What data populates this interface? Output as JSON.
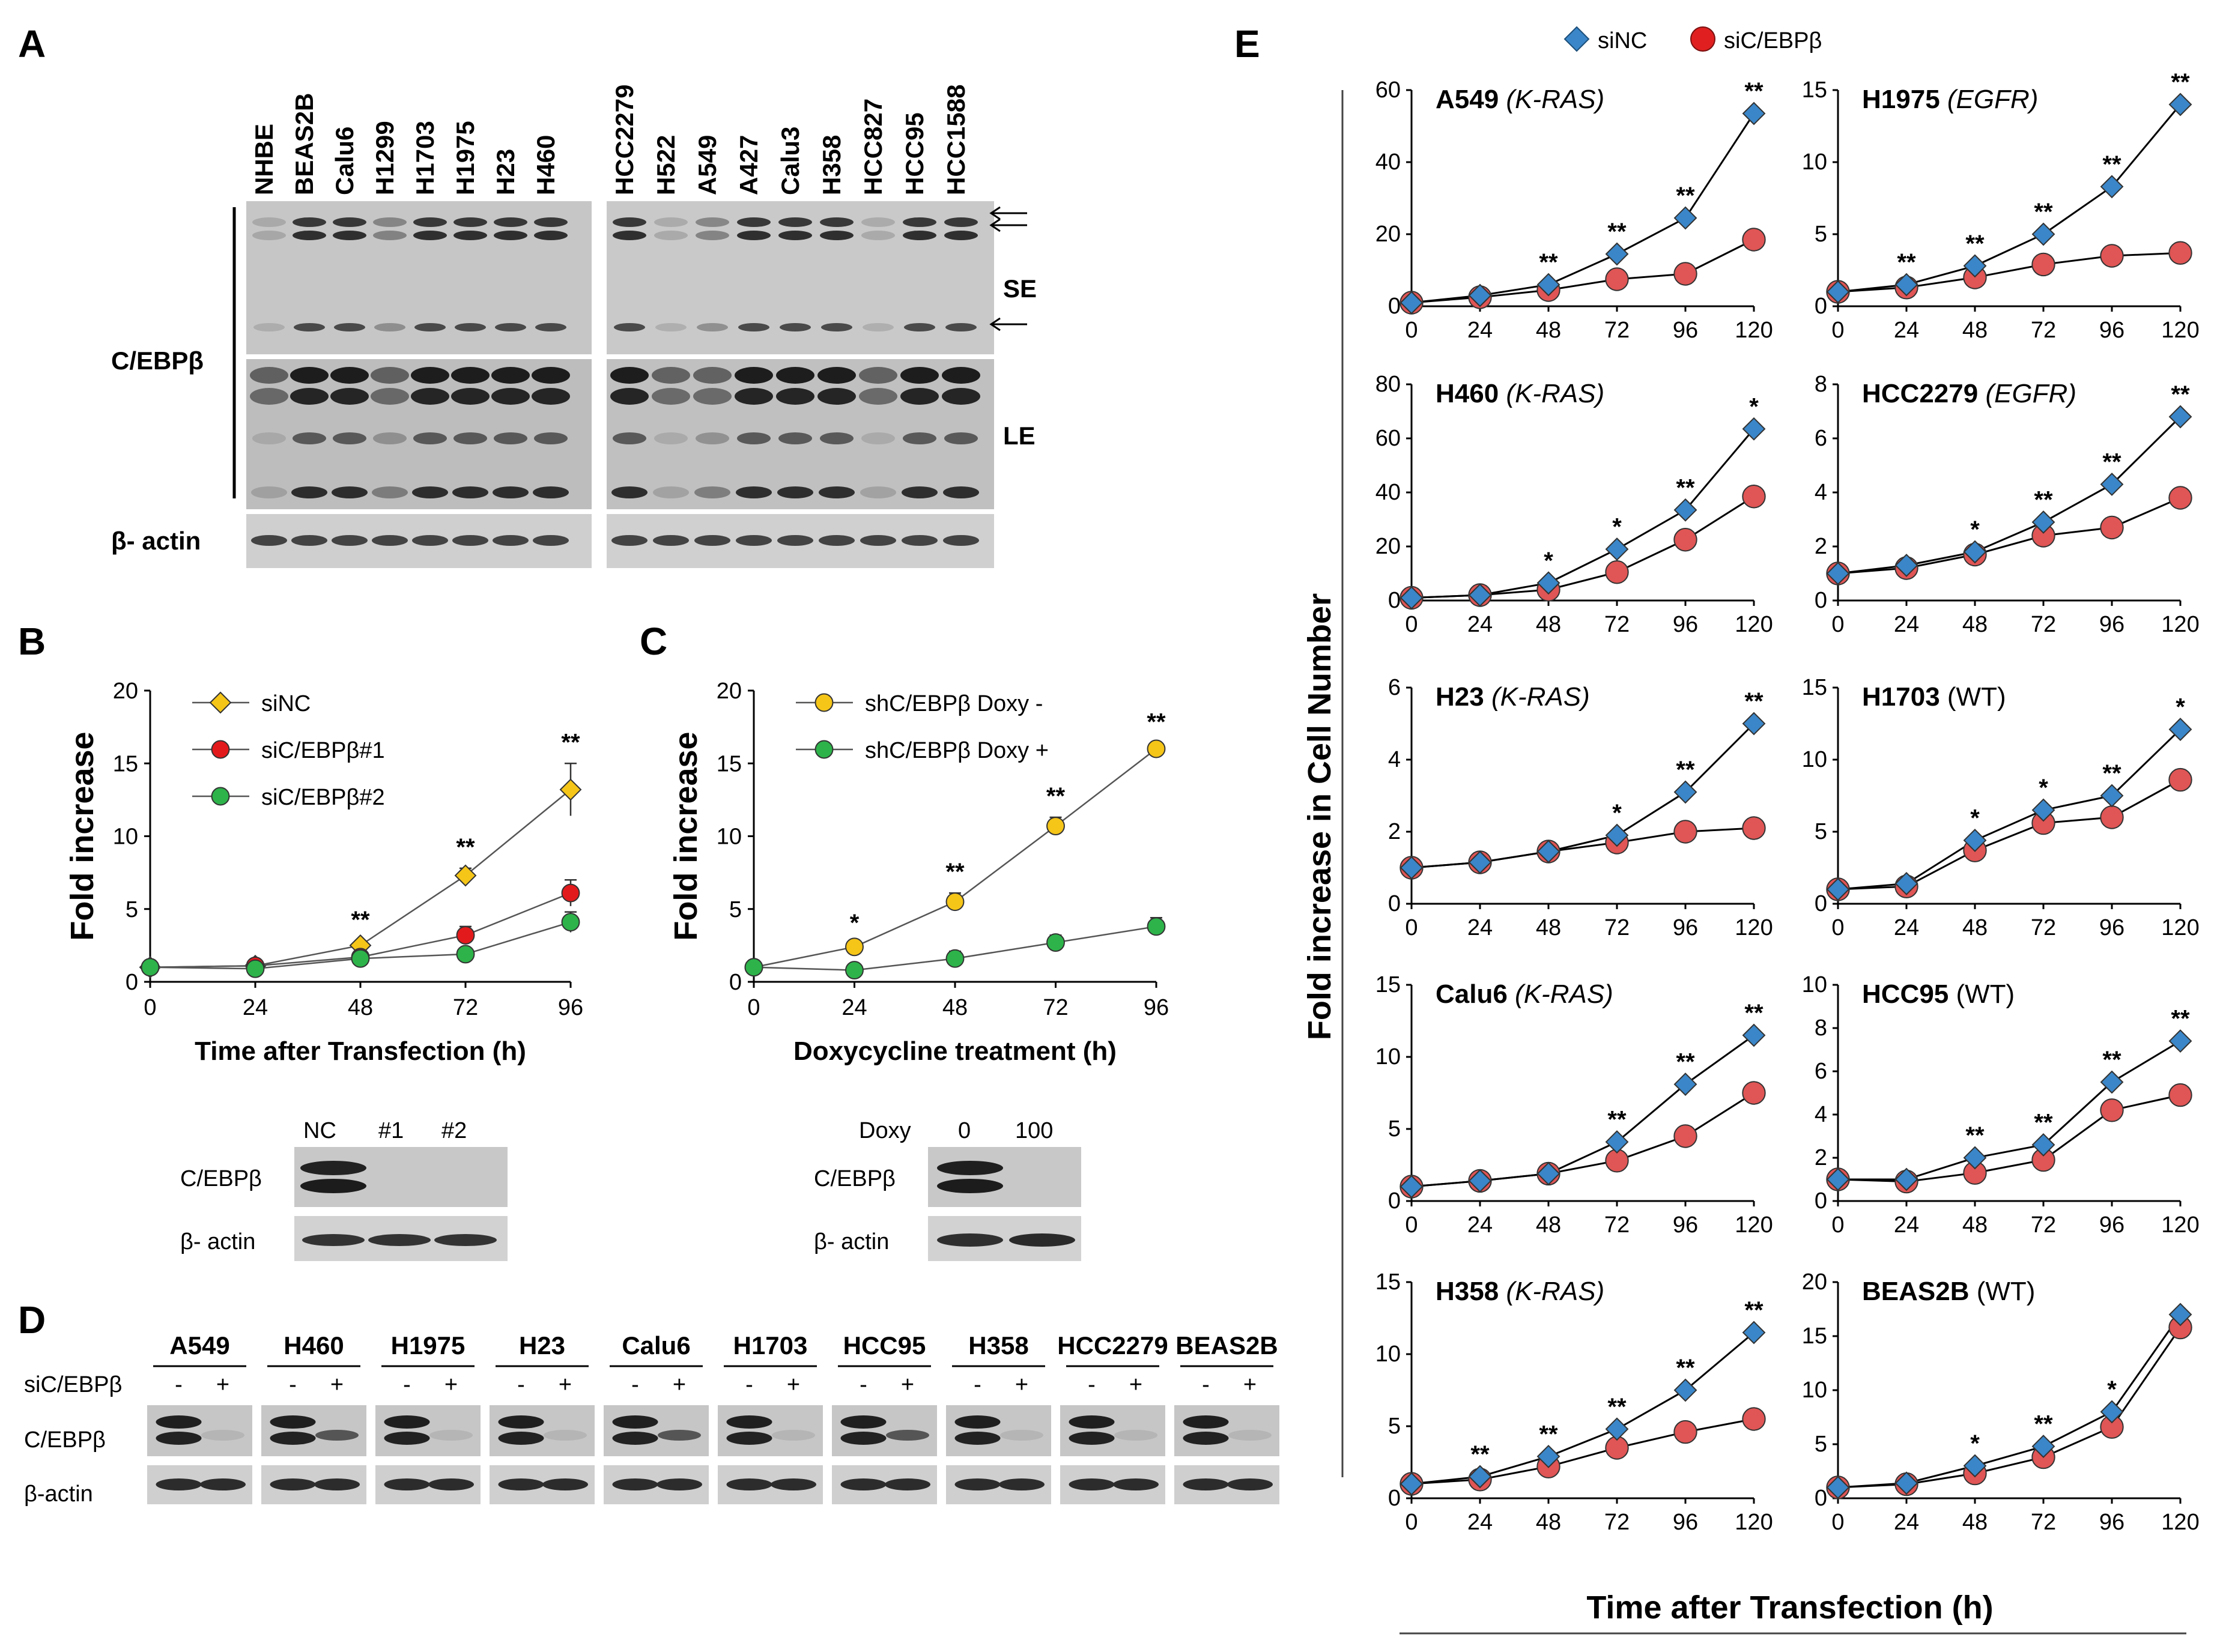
{
  "panels": {
    "A": "A",
    "B": "B",
    "C": "C",
    "D": "D",
    "E": "E"
  },
  "panelA": {
    "lanes_left": [
      "NHBE",
      "BEAS2B",
      "Calu6",
      "H1299",
      "H1703",
      "H1975",
      "H23",
      "H460"
    ],
    "lanes_right": [
      "HCC2279",
      "H522",
      "A549",
      "A427",
      "Calu3",
      "H358",
      "HCC827",
      "HCC95",
      "HCC1588"
    ],
    "row_label": "C/EBPβ",
    "se": "SE",
    "le": "LE",
    "actin": "β- actin"
  },
  "panelB_blot": {
    "lanes": [
      "NC",
      "#1",
      "#2"
    ],
    "row1": "C/EBPβ",
    "row2": "β- actin"
  },
  "panelC_blot": {
    "doxy": "Doxy",
    "lanes": [
      "0",
      "100"
    ],
    "row1": "C/EBPβ",
    "row2": "β- actin"
  },
  "panelD": {
    "cells": [
      "A549",
      "H460",
      "H1975",
      "H23",
      "Calu6",
      "H1703",
      "HCC95",
      "H358",
      "HCC2279",
      "BEAS2B"
    ],
    "minus": "-",
    "plus": "+",
    "treat": "siC/EBPβ",
    "row1": "C/EBPβ",
    "row2": "β-actin"
  },
  "panelE_labels": {
    "ylabel": "Fold increase in Cell Number",
    "xlabel": "Time after Transfection (h)",
    "legend": [
      "siNC",
      "siC/EBPβ"
    ]
  },
  "chart_data": [
    {
      "id": "B",
      "type": "line",
      "xlabel": "Time after Transfection (h)",
      "ylabel": "Fold increase",
      "x": [
        0,
        24,
        48,
        72,
        96
      ],
      "xticks": [
        "0",
        "24",
        "48",
        "72",
        "96"
      ],
      "ylim": [
        0,
        20
      ],
      "yticks": [
        "0",
        "5",
        "10",
        "15",
        "20"
      ],
      "series": [
        {
          "name": "siNC",
          "values": [
            1,
            1.1,
            2.5,
            7.3,
            13.2
          ],
          "err": [
            0,
            0.1,
            0.3,
            0.5,
            1.8
          ],
          "color": "#f5c518",
          "marker": "diamond"
        },
        {
          "name": "siC/EBPβ#1",
          "values": [
            1,
            1.1,
            1.7,
            3.2,
            6.1
          ],
          "err": [
            0,
            0.1,
            0.2,
            0.6,
            0.9
          ],
          "color": "#e31a1c",
          "marker": "circle"
        },
        {
          "name": "siC/EBPβ#2",
          "values": [
            1,
            0.9,
            1.6,
            1.9,
            4.1
          ],
          "err": [
            0,
            0.1,
            0.2,
            0.3,
            0.7
          ],
          "color": "#2db34a",
          "marker": "circle"
        }
      ],
      "sig": [
        "",
        "",
        "**",
        "**",
        "**"
      ]
    },
    {
      "id": "C",
      "type": "line",
      "xlabel": "Doxycycline treatment (h)",
      "ylabel": "Fold increase",
      "x": [
        0,
        24,
        48,
        72,
        96
      ],
      "xticks": [
        "0",
        "24",
        "48",
        "72",
        "96"
      ],
      "ylim": [
        0,
        20
      ],
      "yticks": [
        "0",
        "5",
        "10",
        "15",
        "20"
      ],
      "series": [
        {
          "name": "shC/EBPβ Doxy -",
          "values": [
            1,
            2.4,
            5.5,
            10.7,
            16
          ],
          "err": [
            0,
            0.2,
            0.6,
            0.6,
            0.4
          ],
          "color": "#f5c518",
          "marker": "circle"
        },
        {
          "name": "shC/EBPβ Doxy +",
          "values": [
            1,
            0.8,
            1.6,
            2.7,
            3.8
          ],
          "err": [
            0,
            0.3,
            0.5,
            0.5,
            0.6
          ],
          "color": "#2db34a",
          "marker": "circle"
        }
      ],
      "sig": [
        "",
        "*",
        "**",
        "**",
        "**"
      ]
    },
    {
      "id": "E1",
      "type": "line",
      "title": "A549",
      "gene": "K-RAS",
      "x": [
        0,
        24,
        48,
        72,
        96,
        120
      ],
      "ylim": [
        0,
        60
      ],
      "yticks": [
        "0",
        "20",
        "40",
        "60"
      ],
      "siNC": [
        1,
        3,
        6,
        14.5,
        24.5,
        53.5
      ],
      "siC": [
        1,
        2.5,
        4.5,
        7.5,
        9,
        18.5
      ],
      "sig": [
        "",
        "",
        "**",
        "**",
        "**",
        "**"
      ]
    },
    {
      "id": "E2",
      "type": "line",
      "title": "H1975",
      "gene": "EGFR",
      "x": [
        0,
        24,
        48,
        72,
        96,
        120
      ],
      "ylim": [
        0,
        15
      ],
      "yticks": [
        "0",
        "5",
        "10",
        "15"
      ],
      "siNC": [
        1,
        1.5,
        2.8,
        5.0,
        8.3,
        14.0
      ],
      "siC": [
        1,
        1.3,
        2.0,
        2.9,
        3.5,
        3.7
      ],
      "sig": [
        "",
        "**",
        "**",
        "**",
        "**",
        "**"
      ]
    },
    {
      "id": "E3",
      "type": "line",
      "title": "H460",
      "gene": "K-RAS",
      "x": [
        0,
        24,
        48,
        72,
        96,
        120
      ],
      "ylim": [
        0,
        80
      ],
      "yticks": [
        "0",
        "20",
        "40",
        "60",
        "80"
      ],
      "siNC": [
        1,
        2,
        6.5,
        19,
        33.5,
        63.5
      ],
      "siC": [
        1,
        2,
        4,
        10.5,
        22.5,
        38.5
      ],
      "sig": [
        "",
        "",
        "*",
        "*",
        "**",
        "*"
      ]
    },
    {
      "id": "E4",
      "type": "line",
      "title": "HCC2279",
      "gene": "EGFR",
      "x": [
        0,
        24,
        48,
        72,
        96,
        120
      ],
      "ylim": [
        0,
        8
      ],
      "yticks": [
        "0",
        "2",
        "4",
        "6",
        "8"
      ],
      "siNC": [
        1,
        1.3,
        1.8,
        2.9,
        4.3,
        6.8
      ],
      "siC": [
        1,
        1.2,
        1.7,
        2.4,
        2.7,
        3.8
      ],
      "sig": [
        "",
        "",
        "*",
        "**",
        "**",
        "**"
      ]
    },
    {
      "id": "E5",
      "type": "line",
      "title": "H23",
      "gene": "K-RAS",
      "x": [
        0,
        24,
        48,
        72,
        96,
        120
      ],
      "ylim": [
        0,
        6
      ],
      "yticks": [
        "0",
        "2",
        "4",
        "6"
      ],
      "siNC": [
        1,
        1.15,
        1.45,
        1.9,
        3.1,
        5.0
      ],
      "siC": [
        1,
        1.15,
        1.45,
        1.7,
        2.0,
        2.1
      ],
      "sig": [
        "",
        "",
        "",
        "*",
        "**",
        "**"
      ]
    },
    {
      "id": "E6",
      "type": "line",
      "title": "H1703",
      "gene": "WT",
      "x": [
        0,
        24,
        48,
        72,
        96,
        120
      ],
      "ylim": [
        0,
        15
      ],
      "yticks": [
        "0",
        "5",
        "10",
        "15"
      ],
      "siNC": [
        1,
        1.4,
        4.4,
        6.5,
        7.5,
        12.1
      ],
      "siC": [
        1,
        1.2,
        3.7,
        5.6,
        6.0,
        8.6
      ],
      "sig": [
        "",
        "",
        "*",
        "*",
        "**",
        "*"
      ]
    },
    {
      "id": "E7",
      "type": "line",
      "title": "Calu6",
      "gene": "K-RAS",
      "x": [
        0,
        24,
        48,
        72,
        96,
        120
      ],
      "ylim": [
        0,
        15
      ],
      "yticks": [
        "0",
        "5",
        "10",
        "15"
      ],
      "siNC": [
        1,
        1.4,
        1.9,
        4.1,
        8.1,
        11.5
      ],
      "siC": [
        1,
        1.4,
        1.9,
        2.8,
        4.5,
        7.5
      ],
      "sig": [
        "",
        "",
        "",
        "**",
        "**",
        "**"
      ]
    },
    {
      "id": "E8",
      "type": "line",
      "title": "HCC95",
      "gene": "WT",
      "x": [
        0,
        24,
        48,
        72,
        96,
        120
      ],
      "ylim": [
        0,
        10
      ],
      "yticks": [
        "0",
        "2",
        "4",
        "6",
        "8",
        "10"
      ],
      "siNC": [
        1,
        1.0,
        2.0,
        2.6,
        5.5,
        7.4
      ],
      "siC": [
        1,
        0.9,
        1.3,
        1.9,
        4.2,
        4.9
      ],
      "sig": [
        "",
        "",
        "**",
        "**",
        "**",
        "**"
      ]
    },
    {
      "id": "E9",
      "type": "line",
      "title": "H358",
      "gene": "K-RAS",
      "x": [
        0,
        24,
        48,
        72,
        96,
        120
      ],
      "ylim": [
        0,
        15
      ],
      "yticks": [
        "0",
        "5",
        "10",
        "15"
      ],
      "siNC": [
        1,
        1.5,
        2.9,
        4.8,
        7.5,
        11.5
      ],
      "siC": [
        1,
        1.3,
        2.2,
        3.5,
        4.6,
        5.5
      ],
      "sig": [
        "",
        "**",
        "**",
        "**",
        "**",
        "**"
      ]
    },
    {
      "id": "E10",
      "type": "line",
      "title": "BEAS2B",
      "gene": "WT",
      "x": [
        0,
        24,
        48,
        72,
        96,
        120
      ],
      "ylim": [
        0,
        20
      ],
      "yticks": [
        "0",
        "5",
        "10",
        "15",
        "20"
      ],
      "siNC": [
        1,
        1.4,
        3.0,
        4.8,
        8.0,
        17.0
      ],
      "siC": [
        1,
        1.3,
        2.3,
        3.8,
        6.6,
        15.8
      ],
      "sig": [
        "",
        "",
        "*",
        "**",
        "*",
        ""
      ]
    }
  ]
}
